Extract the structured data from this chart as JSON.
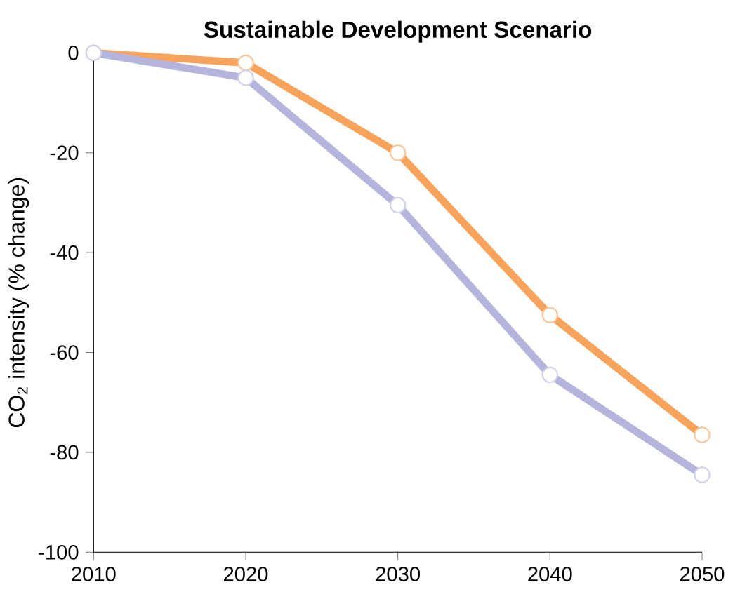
{
  "chart_data": {
    "type": "line",
    "title": "Sustainable Development Scenario",
    "ylabel": "CO$_{2}$ intensity (% change)",
    "x": [
      2010,
      2020,
      2030,
      2040,
      2050
    ],
    "series": [
      {
        "color": "#f7a35c",
        "values": [
          0,
          -2,
          -20,
          -52.5,
          -76.5
        ]
      },
      {
        "color": "#b4b4dc",
        "values": [
          0,
          -5,
          -30.5,
          -64.5,
          -84.5
        ]
      }
    ],
    "xlim": [
      2010,
      2050
    ],
    "xticks": [
      2010,
      2020,
      2030,
      2040,
      2050
    ],
    "ylim": [
      -100,
      0
    ],
    "yticks": [
      -100,
      -80,
      -60,
      -40,
      -20,
      0
    ],
    "grid": false,
    "marker": "circle",
    "line_style": "solid"
  }
}
